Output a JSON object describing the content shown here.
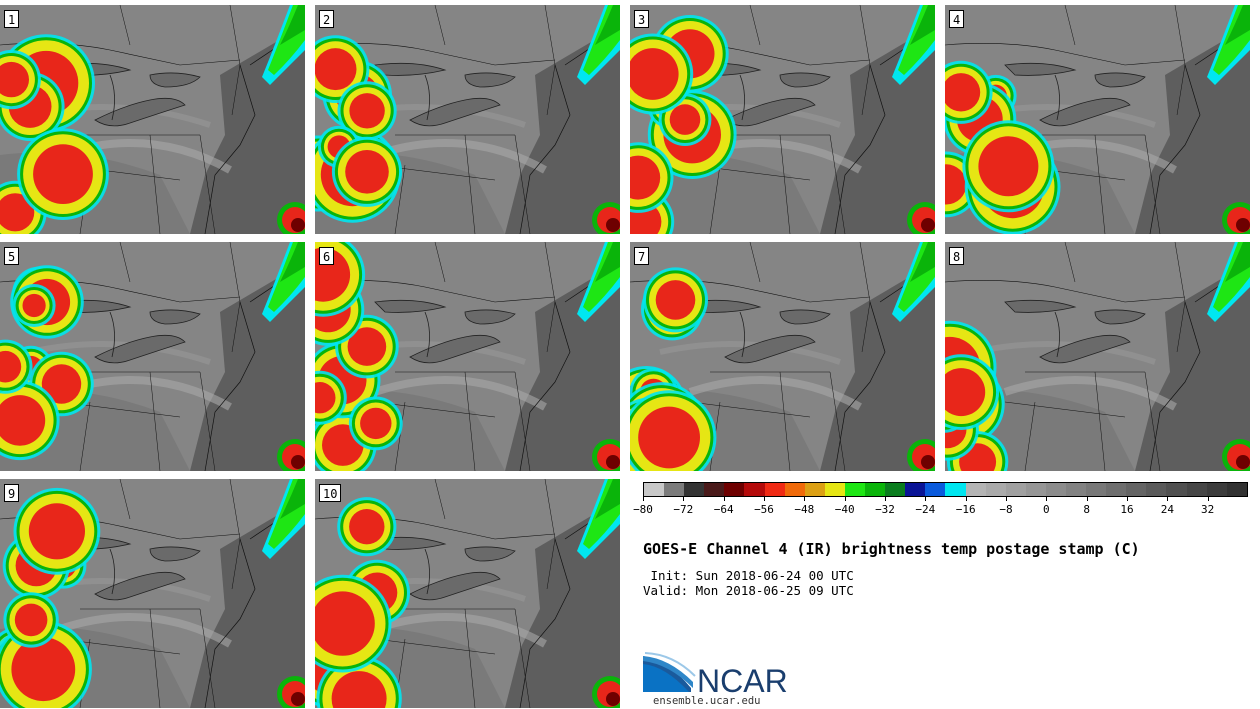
{
  "panels": [
    {
      "label": "1"
    },
    {
      "label": "2"
    },
    {
      "label": "3"
    },
    {
      "label": "4"
    },
    {
      "label": "5"
    },
    {
      "label": "6"
    },
    {
      "label": "7"
    },
    {
      "label": "8"
    },
    {
      "label": "9"
    },
    {
      "label": "10"
    }
  ],
  "colorbar": {
    "colors": [
      "#c8c8c8",
      "#7c7c7c",
      "#343434",
      "#4a1a1a",
      "#6e0000",
      "#b40a0a",
      "#f02a14",
      "#f06a0a",
      "#dca014",
      "#e6e614",
      "#1ee614",
      "#0ab40a",
      "#0a7d1e",
      "#0a1496",
      "#0a5adc",
      "#00e6f0",
      "#b4b4b4",
      "#aaaaaa",
      "#a0a0a0",
      "#969696",
      "#8c8c8c",
      "#828282",
      "#787878",
      "#6e6e6e",
      "#646464",
      "#5a5a5a",
      "#505050",
      "#464646",
      "#3c3c3c",
      "#323232"
    ],
    "tick_labels": [
      "−80",
      "−72",
      "−64",
      "−56",
      "−48",
      "−40",
      "−32",
      "−24",
      "−16",
      "−8",
      "0",
      "8",
      "16",
      "24",
      "32"
    ]
  },
  "title": "GOES-E Channel 4 (IR) brightness temp postage stamp (C)",
  "init": " Init: Sun 2018-06-24 00 UTC",
  "valid": "Valid: Mon 2018-06-25 09 UTC",
  "logo": {
    "text": "NCAR",
    "url": "ensemble.ucar.edu"
  }
}
